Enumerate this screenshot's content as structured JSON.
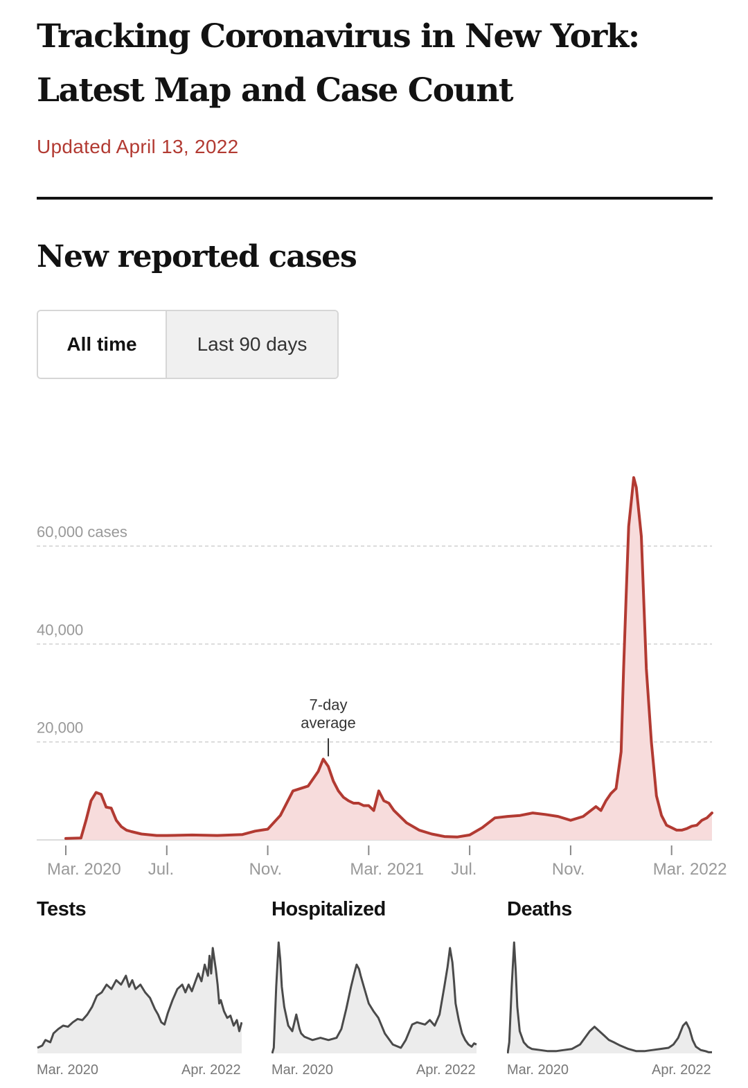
{
  "header": {
    "headline": "Tracking Coronavirus in New York: Latest Map and Case Count",
    "updated": "Updated April 13, 2022"
  },
  "section": {
    "title": "New reported cases"
  },
  "toggle": {
    "options": [
      "All time",
      "Last 90 days"
    ],
    "selected": "All time"
  },
  "colors": {
    "accent": "#b23a32",
    "fill": "#f7dcdc",
    "mini_line": "#4a4a4a",
    "mini_fill": "#ececec"
  },
  "chart_data": [
    {
      "type": "area",
      "title": "New reported cases",
      "ylabel": "cases",
      "ylim": [
        0,
        80000
      ],
      "xlim": [
        0,
        25.6
      ],
      "x_unit": "months since Mar. 1, 2020",
      "y_ticks": [
        {
          "value": 20000,
          "label": "20,000"
        },
        {
          "value": 40000,
          "label": "40,000"
        },
        {
          "value": 60000,
          "label": "60,000 cases"
        }
      ],
      "x_ticks": [
        {
          "value": 0,
          "label": "Mar. 2020"
        },
        {
          "value": 4,
          "label": "Jul."
        },
        {
          "value": 8,
          "label": "Nov."
        },
        {
          "value": 12,
          "label": "Mar. 2021"
        },
        {
          "value": 16,
          "label": "Jul."
        },
        {
          "value": 20,
          "label": "Nov."
        },
        {
          "value": 24,
          "label": "Mar. 2022"
        }
      ],
      "annotation": {
        "text": [
          "7-day",
          "average"
        ],
        "x": 10.4,
        "y": 16500
      },
      "series": [
        {
          "name": "7-day average",
          "x": [
            0,
            0.6,
            0.8,
            1.0,
            1.2,
            1.4,
            1.6,
            1.8,
            2.0,
            2.2,
            2.4,
            2.6,
            3.0,
            3.6,
            4.0,
            5.0,
            6.0,
            7.0,
            7.5,
            8.0,
            8.5,
            9.0,
            9.3,
            9.6,
            10.0,
            10.2,
            10.4,
            10.6,
            10.8,
            11.0,
            11.2,
            11.4,
            11.6,
            11.8,
            12.0,
            12.2,
            12.4,
            12.6,
            12.8,
            13.0,
            13.5,
            14.0,
            14.5,
            15.0,
            15.5,
            16.0,
            16.5,
            17.0,
            17.5,
            18.0,
            18.5,
            19.0,
            19.5,
            20.0,
            20.5,
            21.0,
            21.2,
            21.4,
            21.6,
            21.8,
            22.0,
            22.1,
            22.2,
            22.3,
            22.4,
            22.5,
            22.6,
            22.8,
            23.0,
            23.2,
            23.4,
            23.6,
            23.8,
            24.0,
            24.2,
            24.4,
            24.6,
            24.8,
            25.0,
            25.2,
            25.4,
            25.6
          ],
          "y": [
            300,
            400,
            4000,
            8000,
            9700,
            9300,
            6700,
            6500,
            4000,
            2700,
            2000,
            1700,
            1200,
            900,
            900,
            1000,
            900,
            1100,
            1800,
            2200,
            5000,
            10000,
            10500,
            11000,
            14000,
            16500,
            15000,
            12000,
            10000,
            8700,
            8000,
            7500,
            7500,
            7000,
            7000,
            6000,
            10000,
            8000,
            7500,
            6000,
            3500,
            2000,
            1200,
            700,
            600,
            1000,
            2500,
            4500,
            4800,
            5000,
            5500,
            5200,
            4800,
            4000,
            4800,
            6800,
            6000,
            8000,
            9500,
            10500,
            18000,
            35000,
            50000,
            64000,
            69000,
            74000,
            72000,
            62000,
            35000,
            20000,
            9000,
            5000,
            3000,
            2500,
            2000,
            2000,
            2300,
            2800,
            3000,
            4000,
            4500,
            5500
          ]
        }
      ]
    },
    {
      "type": "area",
      "title": "Tests",
      "xlabels": [
        "Mar. 2020",
        "Apr. 2022"
      ],
      "xlim": [
        0,
        25.4
      ],
      "ylim": [
        0,
        100
      ],
      "series": [
        {
          "name": "Tests",
          "x": [
            0,
            0.6,
            1.0,
            1.6,
            2.0,
            2.6,
            3.2,
            3.8,
            4.4,
            5.0,
            5.6,
            6.2,
            6.8,
            7.4,
            8.0,
            8.6,
            9.2,
            9.8,
            10.4,
            11.0,
            11.4,
            11.8,
            12.2,
            12.8,
            13.4,
            14.0,
            14.6,
            15.0,
            15.4,
            15.8,
            16.2,
            16.8,
            17.4,
            18.0,
            18.4,
            18.8,
            19.2,
            19.6,
            20.0,
            20.4,
            20.8,
            21.2,
            21.4,
            21.6,
            21.8,
            22.0,
            22.2,
            22.4,
            22.6,
            22.8,
            23.2,
            23.6,
            24.0,
            24.4,
            24.8,
            25.1,
            25.4
          ],
          "values": [
            5,
            7,
            12,
            10,
            18,
            22,
            25,
            24,
            28,
            31,
            30,
            35,
            42,
            52,
            55,
            62,
            58,
            66,
            62,
            70,
            60,
            66,
            58,
            62,
            55,
            50,
            40,
            35,
            28,
            26,
            36,
            48,
            58,
            62,
            55,
            62,
            56,
            64,
            72,
            65,
            80,
            70,
            88,
            72,
            95,
            85,
            75,
            62,
            45,
            48,
            38,
            32,
            34,
            25,
            30,
            20,
            28
          ]
        }
      ]
    },
    {
      "type": "area",
      "title": "Hospitalized",
      "xlabels": [
        "Mar. 2020",
        "Apr. 2022"
      ],
      "xlim": [
        0,
        25.4
      ],
      "ylim": [
        0,
        100
      ],
      "series": [
        {
          "name": "Hospitalized",
          "x": [
            0,
            0.2,
            0.5,
            0.8,
            1.0,
            1.2,
            1.5,
            2.0,
            2.5,
            3.0,
            3.4,
            3.6,
            4.0,
            5.0,
            6.0,
            7.0,
            8.0,
            8.6,
            9.2,
            9.8,
            10.2,
            10.5,
            10.8,
            11.0,
            11.4,
            12.0,
            12.6,
            13.2,
            14.0,
            15.0,
            16.0,
            16.6,
            17.4,
            18.0,
            19.0,
            19.6,
            20.2,
            20.8,
            21.4,
            21.8,
            22.1,
            22.4,
            22.6,
            22.8,
            23.2,
            23.6,
            24.0,
            24.4,
            24.8,
            25.1,
            25.4
          ],
          "values": [
            0,
            5,
            60,
            100,
            85,
            60,
            42,
            25,
            20,
            35,
            22,
            18,
            15,
            12,
            14,
            12,
            14,
            22,
            40,
            60,
            72,
            80,
            76,
            70,
            60,
            45,
            38,
            32,
            18,
            8,
            5,
            12,
            26,
            28,
            26,
            30,
            25,
            35,
            60,
            78,
            95,
            82,
            65,
            45,
            30,
            18,
            12,
            8,
            6,
            9,
            8
          ]
        }
      ]
    },
    {
      "type": "area",
      "title": "Deaths",
      "xlabels": [
        "Mar. 2020",
        "Apr. 2022"
      ],
      "xlim": [
        0,
        25.4
      ],
      "ylim": [
        0,
        100
      ],
      "series": [
        {
          "name": "Deaths",
          "x": [
            0,
            0.2,
            0.5,
            0.8,
            1.0,
            1.2,
            1.5,
            2.0,
            2.5,
            3.0,
            4.0,
            5.0,
            6.0,
            7.0,
            8.0,
            9.0,
            9.6,
            10.2,
            10.8,
            11.4,
            12.0,
            12.6,
            13.2,
            14.0,
            15.0,
            16.0,
            17.0,
            18.0,
            19.0,
            20.0,
            20.6,
            21.2,
            21.8,
            22.2,
            22.6,
            23.0,
            23.4,
            24.0,
            24.6,
            25.0,
            25.4
          ],
          "values": [
            0,
            10,
            60,
            100,
            75,
            42,
            20,
            10,
            6,
            4,
            3,
            2,
            2,
            3,
            4,
            8,
            14,
            20,
            24,
            20,
            16,
            12,
            10,
            7,
            4,
            2,
            2,
            3,
            4,
            5,
            8,
            14,
            25,
            28,
            22,
            12,
            6,
            3,
            2,
            1,
            1
          ]
        }
      ]
    }
  ]
}
